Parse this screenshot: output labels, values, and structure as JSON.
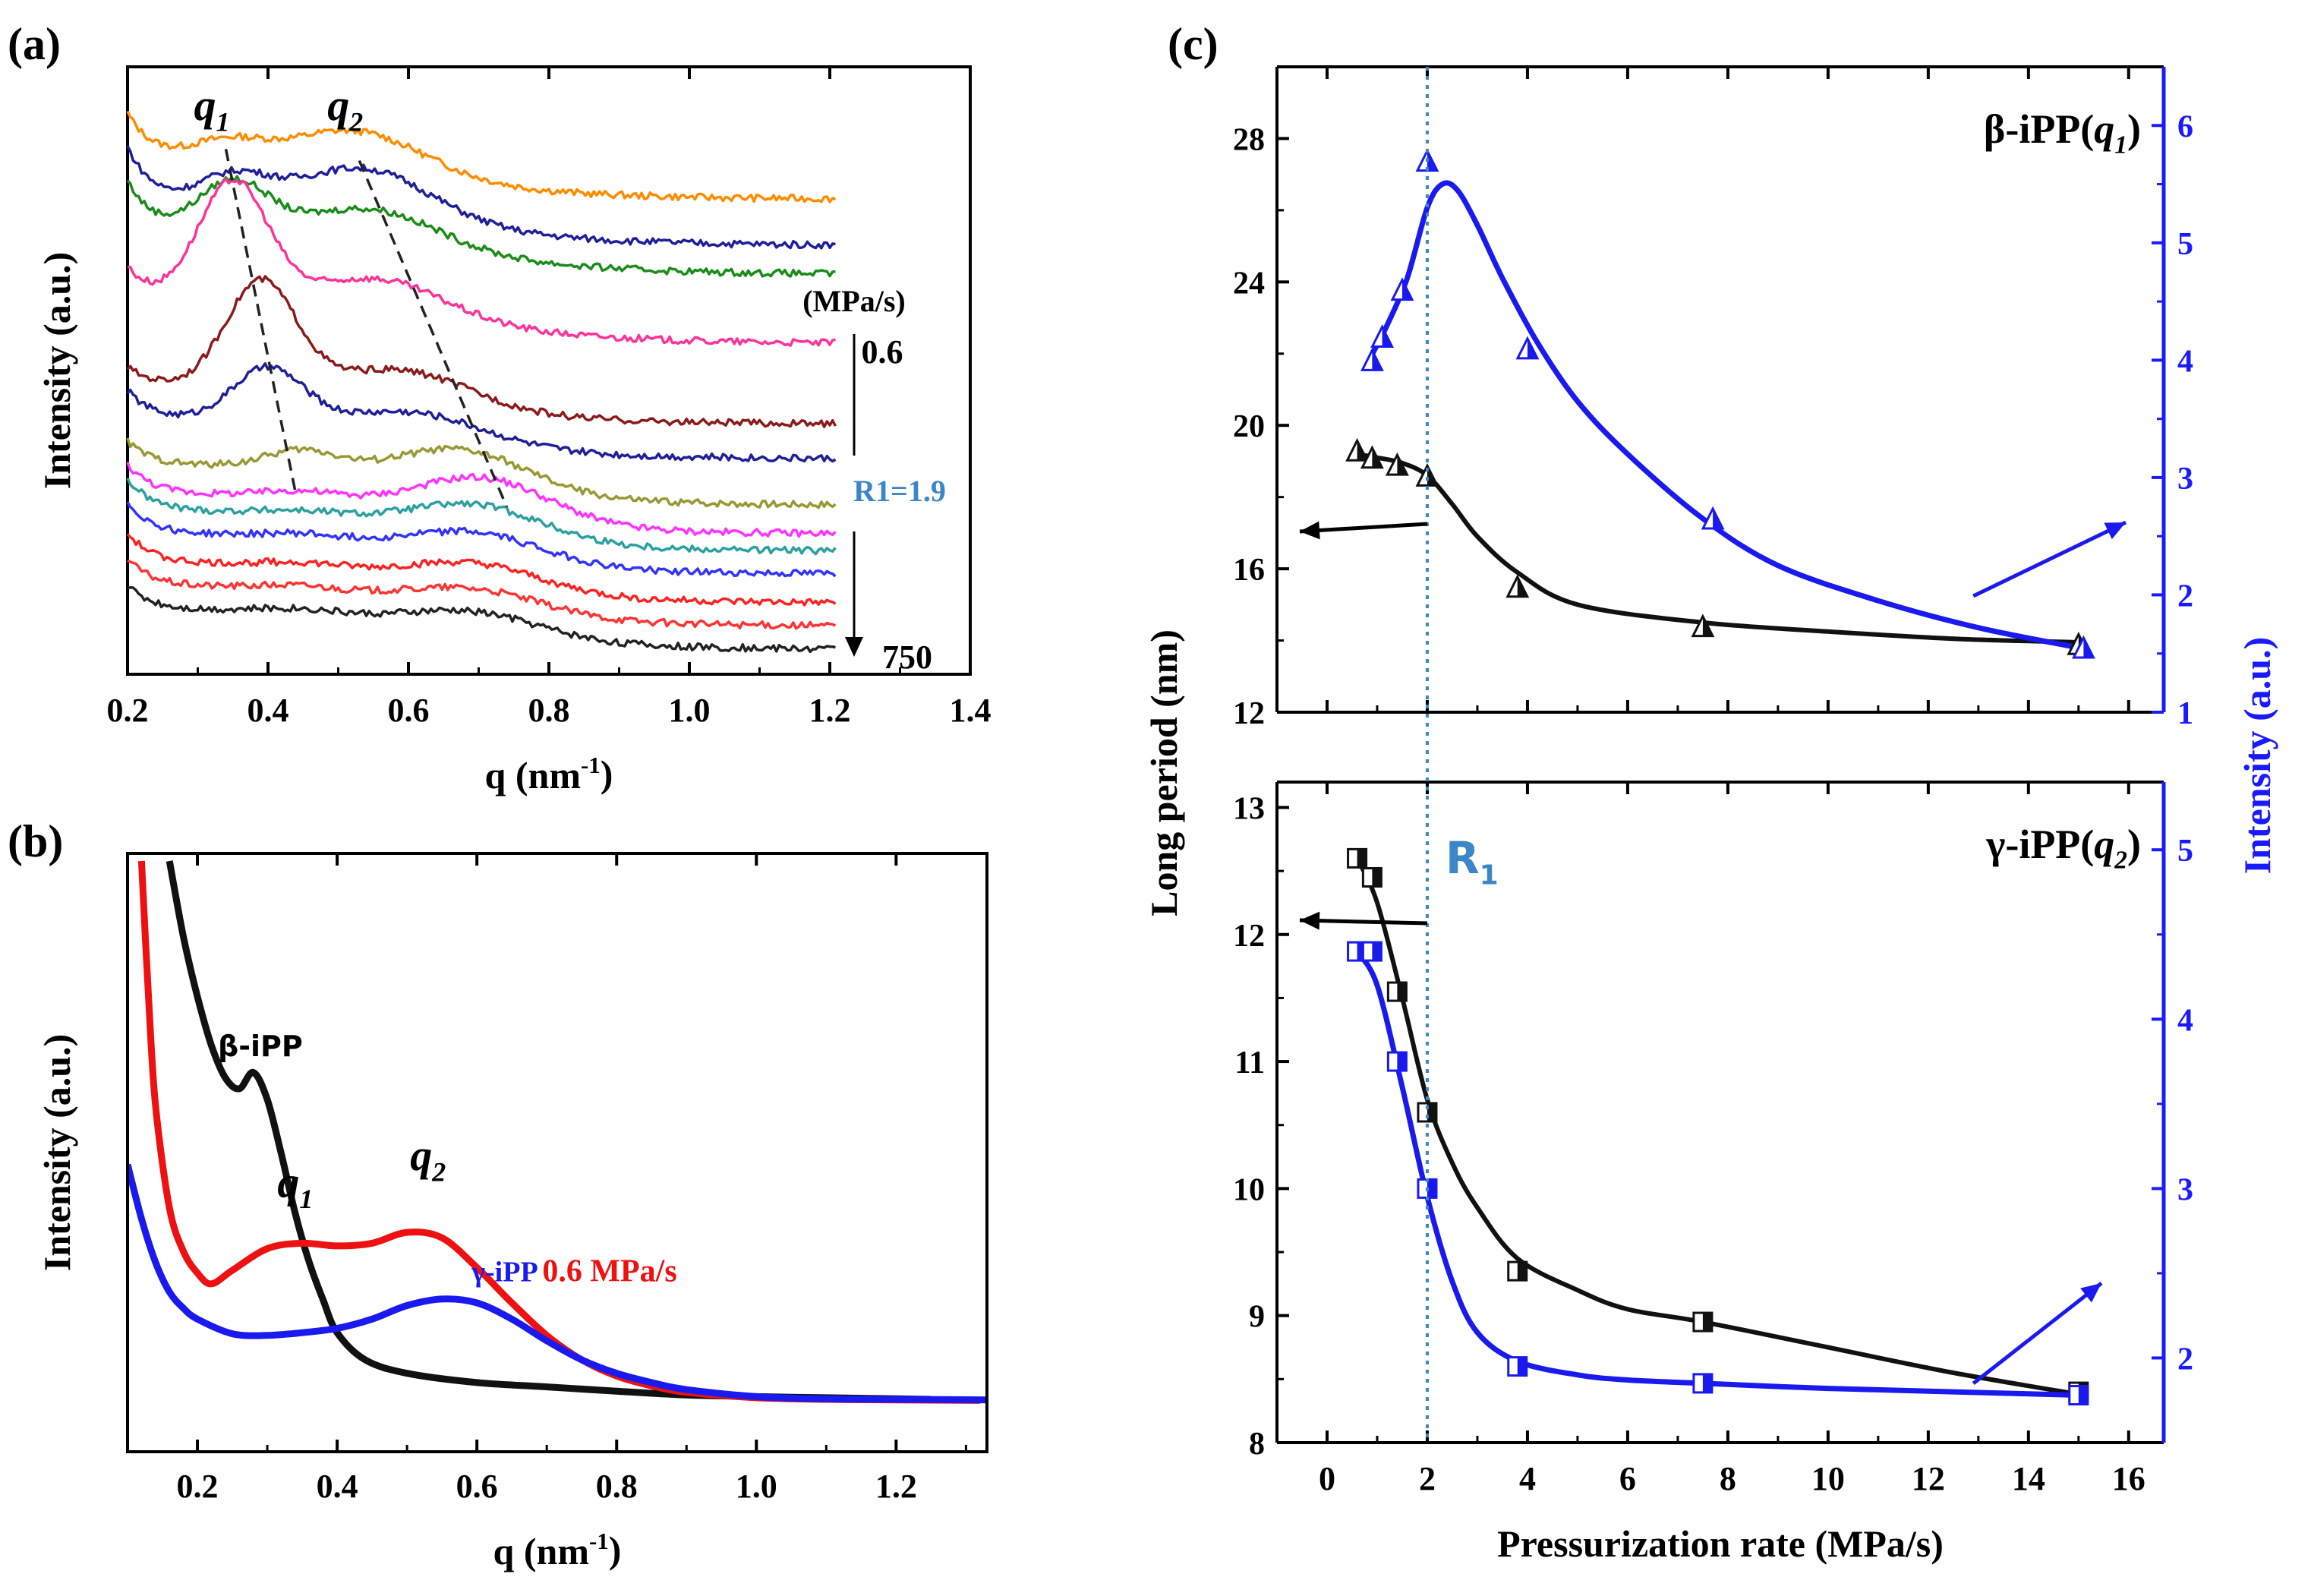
{
  "colors": {
    "axis": "#000000",
    "blue_axis": "#1a1aff",
    "r1_label": "#3a86c8",
    "a_curves": [
      "#ff8c00",
      "#1f1f99",
      "#1a8c1a",
      "#ff3399",
      "#8b1a1a",
      "#1f1f99",
      "#999933",
      "#ff33ff",
      "#2aa0a0",
      "#3333ff",
      "#ff2222",
      "#ff3333",
      "#222222"
    ],
    "b_black": "#111111",
    "b_red": "#ee1111",
    "b_blue": "#1a1aee",
    "c_black": "#111111",
    "c_blue": "#1a1aee"
  },
  "chart_data": [
    {
      "panel": "(a)",
      "type": "line",
      "xlabel_main": "q (nm",
      "xlabel_sup": "-1",
      "xlabel_end": ")",
      "ylabel": "Intensity (a.u.)",
      "xlim": [
        0.2,
        1.4
      ],
      "xticks": [
        "0.2",
        "0.4",
        "0.6",
        "0.8",
        "1.0",
        "1.2",
        "1.4"
      ],
      "peak_labels": [
        {
          "text": "q",
          "sub": "1"
        },
        {
          "text": "q",
          "sub": "2"
        }
      ],
      "unit_label": "(MPa/s)",
      "rate_top": "0.6",
      "rate_mid": "R1=1.9",
      "rate_bottom": "750",
      "series": [
        {
          "offset": 4.1,
          "p1": [
            0.34,
            0.15
          ],
          "p2": [
            0.53,
            0.32
          ],
          "wide": 0.3,
          "left": 0.45
        },
        {
          "offset": 3.7,
          "p1": [
            0.35,
            0.25
          ],
          "p2": [
            0.54,
            0.4
          ],
          "wide": 0.32,
          "left": 0.55
        },
        {
          "offset": 3.45,
          "p1": [
            0.35,
            0.45
          ],
          "p2": [
            0.55,
            0.3
          ],
          "wide": 0.34,
          "left": 0.5
        },
        {
          "offset": 2.85,
          "p1": [
            0.35,
            1.05
          ],
          "p2": [
            0.56,
            0.3
          ],
          "wide": 0.34,
          "left": 0.35
        },
        {
          "offset": 2.15,
          "p1": [
            0.39,
            0.9
          ],
          "p2": [
            0.6,
            0.25
          ],
          "wide": 0.3,
          "left": 0.2
        },
        {
          "offset": 1.85,
          "p1": [
            0.4,
            0.45
          ],
          "p2": [
            0.62,
            0.2
          ],
          "wide": 0.3,
          "left": 0.3
        },
        {
          "offset": 1.45,
          "p1": [
            0.45,
            0.15
          ],
          "p2": [
            0.68,
            0.32
          ],
          "wide": 0.32,
          "left": 0.25
        },
        {
          "offset": 1.2,
          "p1": [
            0.45,
            0.05
          ],
          "p2": [
            0.71,
            0.35
          ],
          "wide": 0.32,
          "left": 0.3
        },
        {
          "offset": 1.05,
          "p1": [
            0.45,
            0.03
          ],
          "p2": [
            0.7,
            0.26
          ],
          "wide": 0.32,
          "left": 0.32
        },
        {
          "offset": 0.85,
          "p1": [
            0.45,
            0.03
          ],
          "p2": [
            0.7,
            0.22
          ],
          "wide": 0.32,
          "left": 0.32
        },
        {
          "offset": 0.6,
          "p1": [
            0.45,
            0.03
          ],
          "p2": [
            0.7,
            0.2
          ],
          "wide": 0.32,
          "left": 0.3
        },
        {
          "offset": 0.4,
          "p1": [
            0.45,
            0.03
          ],
          "p2": [
            0.7,
            0.18
          ],
          "wide": 0.32,
          "left": 0.28
        },
        {
          "offset": 0.2,
          "p1": [
            0.45,
            0.03
          ],
          "p2": [
            0.7,
            0.18
          ],
          "wide": 0.32,
          "left": 0.25
        }
      ],
      "dashed_q1": [
        [
          0.34,
          4.55
        ],
        [
          0.44,
          1.55
        ]
      ],
      "dashed_q2": [
        [
          0.53,
          4.45
        ],
        [
          0.74,
          1.45
        ]
      ],
      "ylim": [
        0,
        5
      ]
    },
    {
      "panel": "(b)",
      "type": "line",
      "xlabel_main": "q (nm",
      "xlabel_sup": "-1",
      "xlabel_end": ")",
      "ylabel": "Intensity (a.u.)",
      "xlim": [
        0.1,
        1.33
      ],
      "xticks": [
        "0.2",
        "0.4",
        "0.6",
        "0.8",
        "1.0",
        "1.2"
      ],
      "ylim": [
        0,
        10
      ],
      "series": [
        {
          "name": "β-iPP",
          "label": "β-iPP",
          "x": [
            0.16,
            0.18,
            0.2,
            0.22,
            0.24,
            0.26,
            0.28,
            0.3,
            0.32,
            0.34,
            0.36,
            0.38,
            0.4,
            0.44,
            0.5,
            0.6,
            0.7,
            0.8,
            0.9,
            1.0,
            1.1,
            1.2,
            1.25
          ],
          "y": [
            10.0,
            8.6,
            7.5,
            6.6,
            6.0,
            5.8,
            6.1,
            5.6,
            4.6,
            3.5,
            2.6,
            1.9,
            1.3,
            0.8,
            0.55,
            0.38,
            0.3,
            0.22,
            0.15,
            0.12,
            0.1,
            0.08,
            0.07
          ]
        },
        {
          "name": "0.6 MPa/s",
          "label": "0.6 MPa/s",
          "x": [
            0.12,
            0.13,
            0.14,
            0.16,
            0.18,
            0.2,
            0.22,
            0.25,
            0.3,
            0.35,
            0.4,
            0.45,
            0.5,
            0.55,
            0.6,
            0.65,
            0.7,
            0.75,
            0.8,
            0.85,
            0.9,
            1.0,
            1.1,
            1.2,
            1.32
          ],
          "y": [
            10.0,
            7.5,
            5.5,
            3.6,
            2.8,
            2.4,
            2.2,
            2.45,
            2.85,
            2.95,
            2.9,
            2.95,
            3.15,
            3.05,
            2.5,
            1.85,
            1.25,
            0.8,
            0.5,
            0.32,
            0.2,
            0.1,
            0.07,
            0.06,
            0.05
          ]
        },
        {
          "name": "γ-iPP",
          "label": "γ-iPP",
          "x": [
            0.1,
            0.12,
            0.14,
            0.16,
            0.18,
            0.2,
            0.25,
            0.3,
            0.35,
            0.4,
            0.45,
            0.5,
            0.55,
            0.6,
            0.65,
            0.7,
            0.75,
            0.8,
            0.85,
            0.9,
            1.0,
            1.1,
            1.2,
            1.33
          ],
          "y": [
            4.4,
            3.4,
            2.6,
            2.05,
            1.75,
            1.55,
            1.28,
            1.25,
            1.3,
            1.38,
            1.55,
            1.8,
            1.92,
            1.85,
            1.55,
            1.15,
            0.8,
            0.55,
            0.38,
            0.25,
            0.12,
            0.08,
            0.07,
            0.06
          ]
        }
      ],
      "peak_labels": [
        {
          "text": "q",
          "sub": "1"
        },
        {
          "text": "q",
          "sub": "2"
        }
      ]
    },
    {
      "panel": "(c)",
      "type": "scatter",
      "xlabel": "Pressurization rate (MPa/s)",
      "ylabel_left": "Long period (nm)",
      "ylabel_right": "Intensity (a.u.)",
      "xlim": [
        -1,
        16.7
      ],
      "xticks": [
        "0",
        "2",
        "4",
        "6",
        "8",
        "10",
        "12",
        "14",
        "16"
      ],
      "r1_label": "R",
      "r1_sub": "1",
      "r1_x": 2,
      "top": {
        "title_text": "β-iPP(",
        "title_q": "q",
        "title_sub": "1",
        "title_end": ")",
        "ylim_left": [
          12,
          30
        ],
        "yticks_left": [
          "12",
          "16",
          "20",
          "24",
          "28"
        ],
        "ylim_right": [
          1,
          6.5
        ],
        "yticks_right": [
          "1",
          "2",
          "3",
          "4",
          "5",
          "6"
        ],
        "long_period": {
          "x": [
            0.6,
            0.9,
            1.4,
            2.0,
            3.8,
            7.5,
            15.0
          ],
          "y": [
            19.3,
            19.1,
            18.9,
            18.6,
            15.5,
            14.4,
            13.9
          ]
        },
        "intensity": {
          "x": [
            0.9,
            1.1,
            1.5,
            2.0,
            4.0,
            7.7,
            15.1
          ],
          "y": [
            4.0,
            4.2,
            4.6,
            5.7,
            4.1,
            2.65,
            1.55
          ]
        },
        "fit_long": {
          "x": [
            0.6,
            1.0,
            1.5,
            2.0,
            2.5,
            3.0,
            3.8,
            5.0,
            7.5,
            10,
            12.5,
            15.0
          ],
          "y": [
            19.2,
            19.1,
            18.95,
            18.6,
            17.8,
            16.9,
            15.9,
            15.0,
            14.5,
            14.25,
            14.05,
            13.95
          ]
        },
        "fit_int": {
          "x": [
            0.9,
            1.2,
            1.6,
            2.0,
            2.3,
            2.6,
            3.0,
            3.5,
            4.2,
            5.0,
            6.0,
            7.5,
            9.0,
            11.0,
            13.0,
            15.0
          ],
          "y": [
            4.05,
            4.3,
            4.7,
            5.3,
            5.5,
            5.45,
            5.15,
            4.7,
            4.15,
            3.65,
            3.2,
            2.65,
            2.25,
            1.95,
            1.72,
            1.55
          ]
        }
      },
      "bottom": {
        "title_text": "γ-iPP(",
        "title_q": "q",
        "title_sub": "2",
        "title_end": ")",
        "ylim_left": [
          8,
          13.2
        ],
        "yticks_left": [
          "8",
          "9",
          "10",
          "11",
          "12",
          "13"
        ],
        "ylim_right": [
          1.5,
          5.4
        ],
        "yticks_right": [
          "2",
          "3",
          "4",
          "5"
        ],
        "long_period": {
          "x": [
            0.6,
            0.9,
            1.4,
            2.0,
            3.8,
            7.5,
            15.0
          ],
          "y": [
            12.6,
            12.45,
            11.55,
            10.6,
            9.35,
            8.95,
            8.4
          ]
        },
        "intensity": {
          "x": [
            0.6,
            0.9,
            1.4,
            2.0,
            3.8,
            7.5,
            15.0
          ],
          "y": [
            4.4,
            4.4,
            3.75,
            3.0,
            1.95,
            1.85,
            1.78
          ]
        },
        "fit_long": {
          "x": [
            0.6,
            1.0,
            1.5,
            2.0,
            2.5,
            3.0,
            3.8,
            5.0,
            6.0,
            7.5,
            10,
            12.5,
            15.0
          ],
          "y": [
            12.6,
            12.25,
            11.5,
            10.7,
            10.2,
            9.85,
            9.45,
            9.2,
            9.05,
            8.95,
            8.75,
            8.55,
            8.38
          ]
        },
        "fit_int": {
          "x": [
            0.6,
            1.0,
            1.5,
            2.0,
            2.5,
            3.0,
            3.8,
            5.0,
            6.0,
            7.5,
            10,
            12.5,
            15.0
          ],
          "y": [
            4.4,
            4.2,
            3.6,
            2.95,
            2.45,
            2.15,
            1.98,
            1.9,
            1.87,
            1.85,
            1.82,
            1.8,
            1.78
          ]
        }
      }
    }
  ],
  "panel_labels": [
    "(a)",
    "(b)",
    "(c)"
  ]
}
